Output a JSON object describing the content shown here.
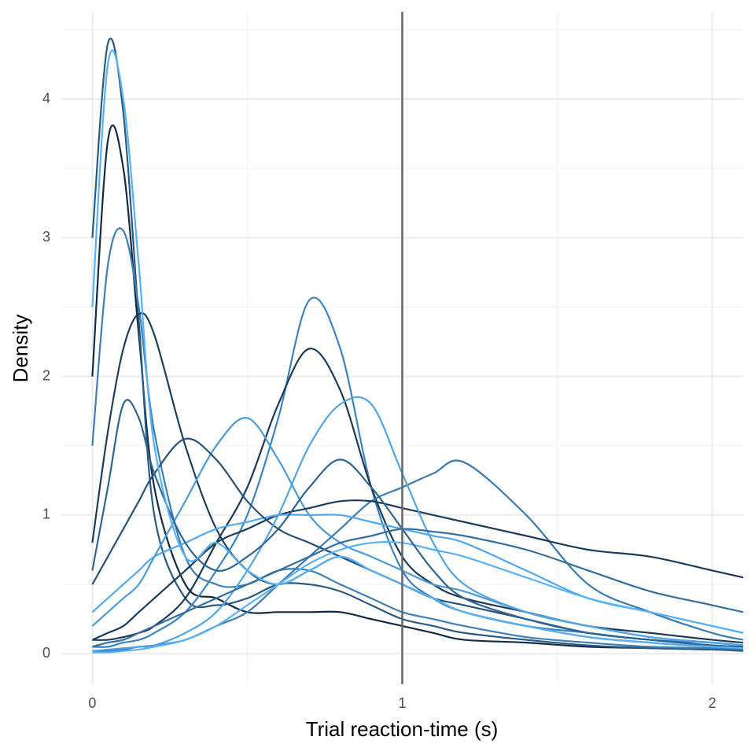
{
  "chart_data": {
    "type": "line",
    "x_label": "Trial reaction-time (s)",
    "y_label": "Density",
    "x": [
      0,
      0.05,
      0.1,
      0.15,
      0.2,
      0.3,
      0.4,
      0.5,
      0.6,
      0.7,
      0.8,
      0.9,
      1.0,
      1.1,
      1.2,
      1.4,
      1.6,
      1.8,
      2.0,
      2.1
    ],
    "series": [
      {
        "color": "#132B43",
        "values": [
          2.0,
          3.7,
          3.5,
          2.3,
          1.2,
          0.5,
          0.4,
          0.3,
          0.3,
          0.3,
          0.3,
          0.25,
          0.2,
          0.15,
          0.1,
          0.08,
          0.05,
          0.04,
          0.03,
          0.03
        ]
      },
      {
        "color": "#2A5A80",
        "values": [
          3.0,
          4.4,
          3.9,
          2.4,
          1.0,
          0.4,
          0.35,
          0.4,
          0.5,
          0.5,
          0.45,
          0.35,
          0.25,
          0.2,
          0.15,
          0.1,
          0.06,
          0.04,
          0.03,
          0.02
        ]
      },
      {
        "color": "#3E7FB5",
        "values": [
          1.5,
          2.8,
          3.05,
          2.5,
          1.6,
          0.7,
          0.5,
          0.5,
          0.6,
          0.6,
          0.5,
          0.4,
          0.3,
          0.25,
          0.2,
          0.12,
          0.08,
          0.05,
          0.04,
          0.03
        ]
      },
      {
        "color": "#1D3F5E",
        "values": [
          0.8,
          1.6,
          2.2,
          2.45,
          2.3,
          1.5,
          0.9,
          0.6,
          0.5,
          0.6,
          0.7,
          0.6,
          0.5,
          0.4,
          0.3,
          0.2,
          0.12,
          0.08,
          0.05,
          0.04
        ]
      },
      {
        "color": "#3B83C0",
        "values": [
          0.05,
          0.05,
          0.08,
          0.1,
          0.15,
          0.3,
          0.6,
          1.0,
          1.7,
          2.55,
          2.2,
          1.2,
          0.6,
          0.4,
          0.3,
          0.2,
          0.15,
          0.1,
          0.08,
          0.06
        ]
      },
      {
        "color": "#1A3A57",
        "values": [
          0.1,
          0.1,
          0.12,
          0.15,
          0.2,
          0.4,
          0.8,
          1.2,
          1.8,
          2.2,
          1.9,
          1.2,
          0.7,
          0.5,
          0.4,
          0.3,
          0.2,
          0.15,
          0.1,
          0.08
        ]
      },
      {
        "color": "#4A9AD8",
        "values": [
          0.2,
          0.3,
          0.4,
          0.5,
          0.7,
          1.1,
          1.5,
          1.7,
          1.4,
          1.0,
          0.8,
          0.7,
          0.6,
          0.5,
          0.45,
          0.3,
          0.2,
          0.12,
          0.08,
          0.06
        ]
      },
      {
        "color": "#3A7BB4",
        "values": [
          0.02,
          0.02,
          0.03,
          0.05,
          0.06,
          0.1,
          0.2,
          0.3,
          0.5,
          0.7,
          0.9,
          1.1,
          1.2,
          1.3,
          1.38,
          1.0,
          0.5,
          0.3,
          0.15,
          0.1
        ]
      },
      {
        "color": "#1B3C5A",
        "values": [
          0.1,
          0.15,
          0.2,
          0.3,
          0.4,
          0.6,
          0.8,
          0.9,
          1.0,
          1.05,
          1.1,
          1.1,
          1.05,
          1.0,
          0.95,
          0.85,
          0.75,
          0.7,
          0.6,
          0.55
        ]
      },
      {
        "color": "#52A8EC",
        "values": [
          0.3,
          0.4,
          0.5,
          0.6,
          0.7,
          0.8,
          0.9,
          0.95,
          1.0,
          1.0,
          1.0,
          0.95,
          0.9,
          0.85,
          0.8,
          0.6,
          0.4,
          0.3,
          0.2,
          0.15
        ]
      },
      {
        "color": "#27527A",
        "values": [
          0.5,
          0.7,
          0.9,
          1.1,
          1.3,
          1.55,
          1.4,
          1.1,
          0.9,
          0.8,
          0.7,
          0.6,
          0.5,
          0.4,
          0.35,
          0.25,
          0.15,
          0.1,
          0.06,
          0.05
        ]
      },
      {
        "color": "#4FA5E8",
        "values": [
          0.02,
          0.03,
          0.04,
          0.05,
          0.06,
          0.15,
          0.3,
          0.6,
          1.0,
          1.5,
          1.8,
          1.8,
          1.3,
          0.8,
          0.5,
          0.3,
          0.2,
          0.12,
          0.08,
          0.06
        ]
      },
      {
        "color": "#336E9F",
        "values": [
          0.05,
          0.08,
          0.1,
          0.15,
          0.2,
          0.3,
          0.4,
          0.5,
          0.6,
          0.7,
          0.8,
          0.85,
          0.9,
          0.88,
          0.85,
          0.75,
          0.6,
          0.45,
          0.35,
          0.3
        ]
      },
      {
        "color": "#56B1F7",
        "values": [
          0.01,
          0.01,
          0.02,
          0.03,
          0.05,
          0.1,
          0.2,
          0.35,
          0.5,
          0.65,
          0.75,
          0.8,
          0.8,
          0.75,
          0.7,
          0.55,
          0.4,
          0.3,
          0.2,
          0.15
        ]
      },
      {
        "color": "#2F6593",
        "values": [
          0.6,
          1.2,
          1.8,
          1.7,
          1.3,
          0.8,
          0.6,
          0.7,
          0.9,
          1.2,
          1.4,
          1.2,
          0.9,
          0.6,
          0.4,
          0.25,
          0.15,
          0.1,
          0.06,
          0.05
        ]
      },
      {
        "color": "#56B1F7",
        "values": [
          2.5,
          4.25,
          4.0,
          2.8,
          1.5,
          0.7,
          0.8,
          0.6,
          0.5,
          0.6,
          0.7,
          0.6,
          0.5,
          0.4,
          0.3,
          0.2,
          0.12,
          0.08,
          0.05,
          0.04
        ]
      }
    ],
    "xlim": [
      -0.1,
      2.1
    ],
    "ylim": [
      -0.22,
      4.63
    ],
    "xticks": [
      0,
      1,
      2
    ],
    "yticks": [
      0,
      1,
      2,
      3,
      4
    ],
    "x_minor_ticks": [
      0.5,
      1.5
    ],
    "y_minor_ticks": [
      0.5,
      1.5,
      2.5,
      3.5,
      4.5
    ],
    "vline": 1,
    "vline_color": "#666666",
    "grid": true
  }
}
